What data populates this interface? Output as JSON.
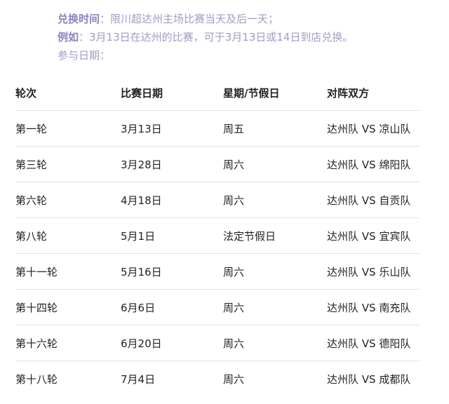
{
  "intro": {
    "exchange_label": "兑换时间",
    "exchange_text": "：限川超达州主场比赛当天及后一天；",
    "example_label": "例如",
    "example_text": "：3月13日在达州的比赛，可于3月13日或14日到店兑换。",
    "dates_label": "参与日期："
  },
  "table": {
    "headers": [
      "轮次",
      "比赛日期",
      "星期/节假日",
      "对阵双方"
    ],
    "rows": [
      [
        "第一轮",
        "3月13日",
        "周五",
        "达州队 VS 凉山队"
      ],
      [
        "第三轮",
        "3月28日",
        "周六",
        "达州队 VS 绵阳队"
      ],
      [
        "第六轮",
        "4月18日",
        "周六",
        "达州队 VS 自贡队"
      ],
      [
        "第八轮",
        "5月1日",
        "法定节假日",
        "达州队 VS 宜宾队"
      ],
      [
        "第十一轮",
        "5月16日",
        "周六",
        "达州队 VS 乐山队"
      ],
      [
        "第十四轮",
        "6月6日",
        "周六",
        "达州队 VS 南充队"
      ],
      [
        "第十六轮",
        "6月20日",
        "周六",
        "达州队 VS 德阳队"
      ],
      [
        "第十八轮",
        "7月4日",
        "周六",
        "达州队 VS 成都队"
      ]
    ]
  }
}
